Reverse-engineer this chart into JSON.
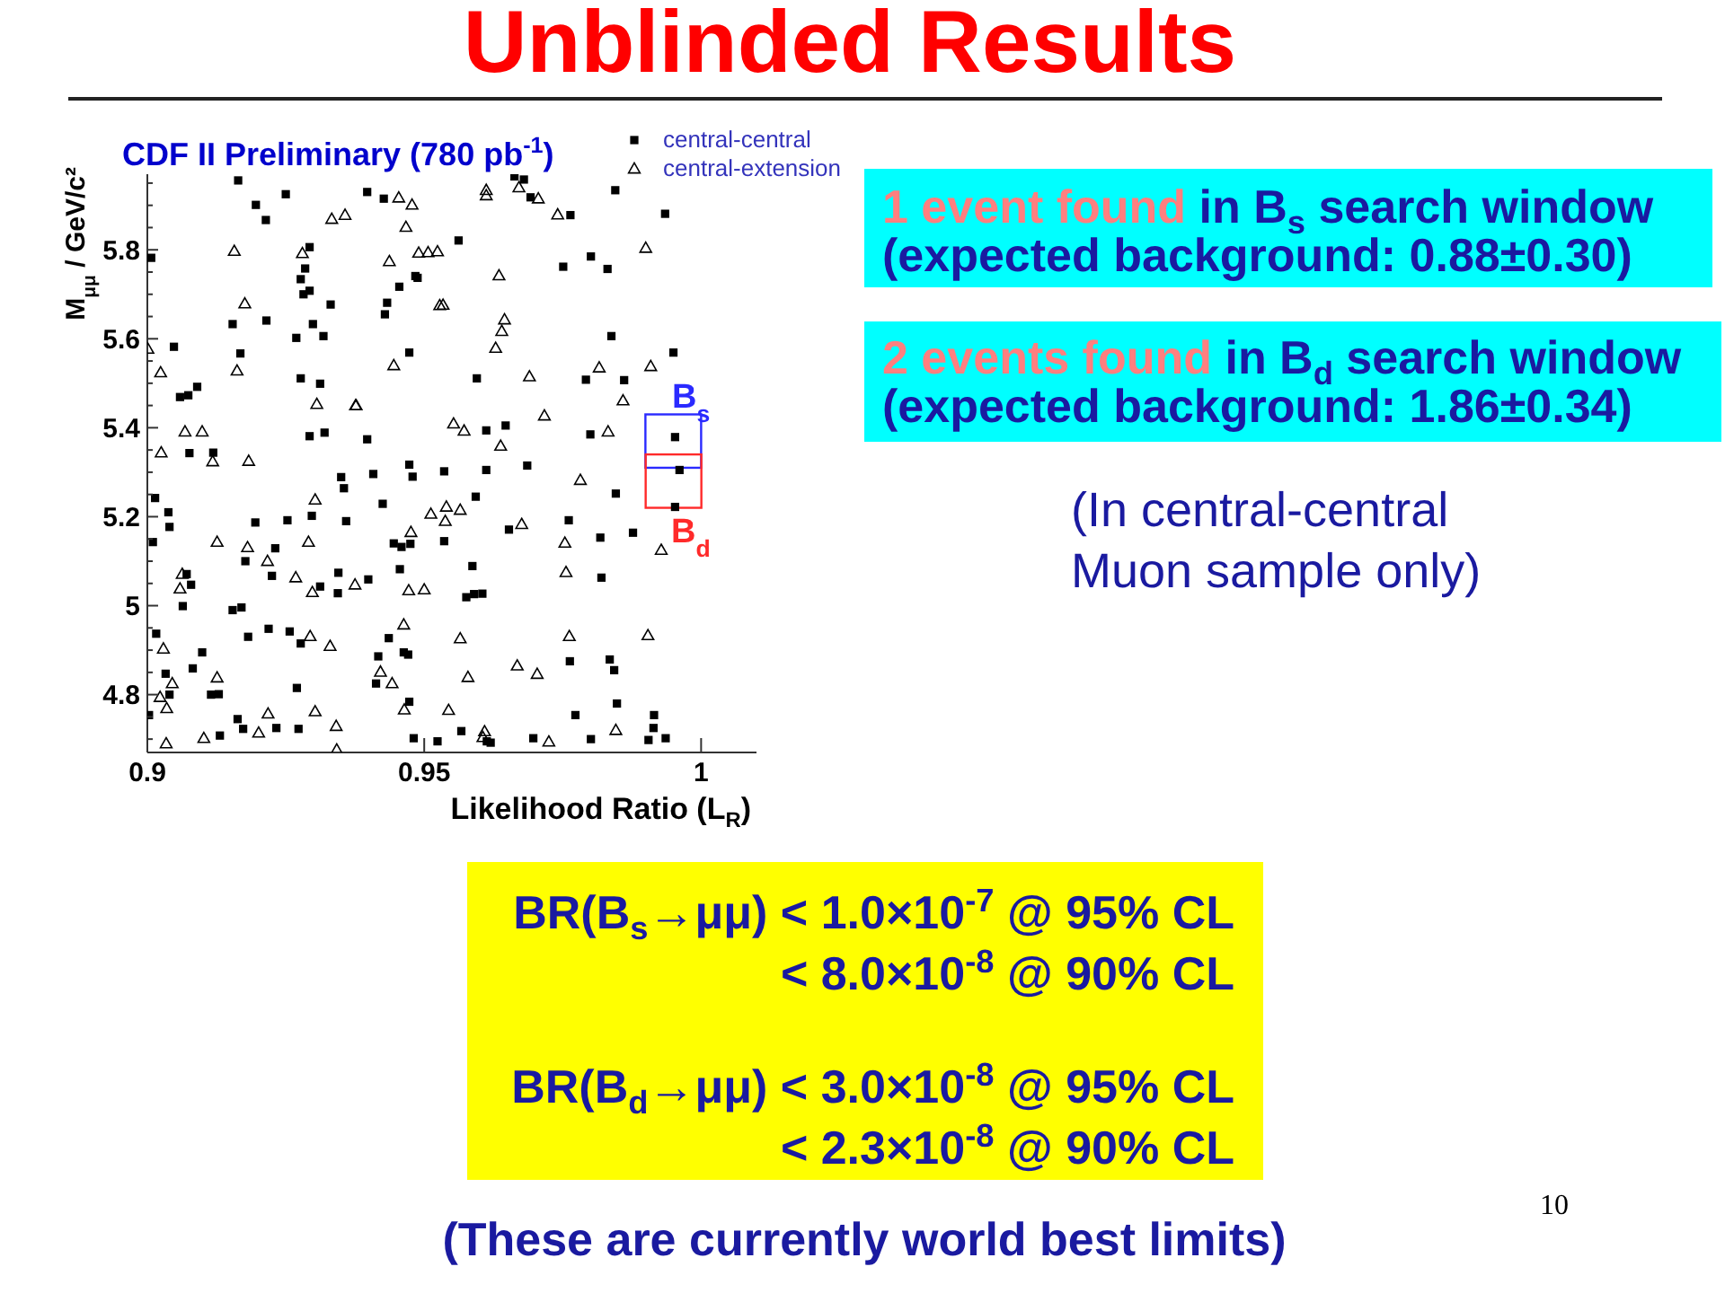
{
  "chart_data": {
    "type": "scatter",
    "title": "Unblinded Results",
    "subtitle": "CDF II Preliminary (780 pb$^{-1}$)",
    "xlabel": "Likelihood Ratio (L$_{R}$)",
    "ylabel": "M$_{μμ}$ / GeV/c²",
    "xlim": [
      0.9,
      1.01
    ],
    "xticks": [
      0.9,
      0.95,
      1
    ],
    "ylim": [
      4.67,
      5.97
    ],
    "yticks": [
      {
        "value": 4.7,
        "label": null
      },
      {
        "value": 4.75,
        "label": null
      },
      4.8,
      {
        "value": 4.85,
        "label": null
      },
      {
        "value": 4.9,
        "label": null
      },
      {
        "value": 4.95,
        "label": null
      },
      5,
      {
        "value": 5.05,
        "label": null
      },
      {
        "value": 5.1,
        "label": null
      },
      {
        "value": 5.15,
        "label": null
      },
      5.2,
      {
        "value": 5.25,
        "label": null
      },
      {
        "value": 5.3,
        "label": null
      },
      {
        "value": 5.35,
        "label": null
      },
      5.4,
      {
        "value": 5.45,
        "label": null
      },
      {
        "value": 5.5,
        "label": null
      },
      {
        "value": 5.55,
        "label": null
      },
      5.6,
      {
        "value": 5.65,
        "label": null
      },
      {
        "value": 5.7,
        "label": null
      },
      {
        "value": 5.75,
        "label": null
      },
      5.8,
      {
        "value": 5.85,
        "label": null
      },
      {
        "value": 5.9,
        "label": null
      },
      {
        "value": 5.95,
        "label": null
      }
    ],
    "legend": "top right",
    "series": [
      {
        "name": "central-central",
        "color": "#000000",
        "marker": "square",
        "x": [
          0.9164,
          0.9196,
          0.9214,
          0.925,
          0.9007,
          0.9293,
          0.9285,
          0.9277,
          0.9293,
          0.9282,
          0.9331,
          0.9215,
          0.9154,
          0.9299,
          0.9269,
          0.9318,
          0.9048,
          0.9168,
          0.9277,
          0.9312,
          0.909,
          0.9074,
          0.9059,
          0.9293,
          0.932,
          0.9076,
          0.9119,
          0.9397,
          0.9427,
          0.9663,
          0.968,
          0.9692,
          0.9764,
          0.9562,
          0.9751,
          0.9801,
          0.9484,
          0.9488,
          0.9455,
          0.9433,
          0.9429,
          0.9473,
          0.9595,
          0.9792,
          0.9397,
          0.9612,
          0.9647,
          0.98,
          0.9845,
          0.9935,
          0.9831,
          0.9838,
          0.995,
          0.9861,
          0.9953,
          0.9961,
          0.9846,
          0.9953,
          0.935,
          0.9355,
          0.9014,
          0.9038,
          0.904,
          0.901,
          0.9195,
          0.9253,
          0.9297,
          0.9359,
          0.9231,
          0.9177,
          0.9225,
          0.9071,
          0.9079,
          0.9064,
          0.9154,
          0.917,
          0.9312,
          0.9345,
          0.9344,
          0.9016,
          0.9182,
          0.9219,
          0.9257,
          0.9277,
          0.9099,
          0.9082,
          0.9033,
          0.904,
          0.9115,
          0.9129,
          0.9003,
          0.927,
          0.9163,
          0.9173,
          0.9131,
          0.9233,
          0.9273,
          0.9473,
          0.9408,
          0.9479,
          0.9536,
          0.9612,
          0.9686,
          0.9425,
          0.9593,
          0.9653,
          0.9761,
          0.9445,
          0.9459,
          0.9475,
          0.9536,
          0.9456,
          0.9587,
          0.9399,
          0.9576,
          0.959,
          0.9605,
          0.9436,
          0.9417,
          0.9463,
          0.9471,
          0.9763,
          0.9413,
          0.9473,
          0.9773,
          0.9481,
          0.9524,
          0.9567,
          0.9613,
          0.962,
          0.9697,
          0.9801,
          0.9818,
          0.9877,
          0.982,
          0.9835,
          0.9843,
          0.9848,
          0.9915,
          0.9914,
          0.9905,
          0.9936
        ],
        "values": [
          5.956,
          5.901,
          5.867,
          5.925,
          5.782,
          5.806,
          5.758,
          5.734,
          5.708,
          5.7,
          5.677,
          5.641,
          5.633,
          5.633,
          5.602,
          5.606,
          5.582,
          5.567,
          5.511,
          5.499,
          5.492,
          5.473,
          5.469,
          5.381,
          5.389,
          5.343,
          5.344,
          5.93,
          5.915,
          5.965,
          5.958,
          5.918,
          5.878,
          5.821,
          5.762,
          5.785,
          5.741,
          5.737,
          5.717,
          5.681,
          5.655,
          5.569,
          5.511,
          5.508,
          5.374,
          5.394,
          5.405,
          5.385,
          5.934,
          5.881,
          5.757,
          5.606,
          5.569,
          5.507,
          5.379,
          5.305,
          5.252,
          5.222,
          5.289,
          5.264,
          5.242,
          5.21,
          5.177,
          5.143,
          5.187,
          5.192,
          5.202,
          5.19,
          5.129,
          5.1,
          5.067,
          5.071,
          5.047,
          4.999,
          4.99,
          4.996,
          5.043,
          5.074,
          5.028,
          4.937,
          4.93,
          4.948,
          4.942,
          4.915,
          4.895,
          4.859,
          4.847,
          4.8,
          4.8,
          4.801,
          4.754,
          4.815,
          4.745,
          4.723,
          4.708,
          4.725,
          4.723,
          5.317,
          5.296,
          5.29,
          5.302,
          5.305,
          5.315,
          5.229,
          5.245,
          5.171,
          5.192,
          5.14,
          5.132,
          5.139,
          5.145,
          5.082,
          5.089,
          5.059,
          5.019,
          5.026,
          5.027,
          4.927,
          4.886,
          4.895,
          4.89,
          4.875,
          4.825,
          4.784,
          4.754,
          4.702,
          4.695,
          4.718,
          4.695,
          4.692,
          4.702,
          4.7,
          5.153,
          5.164,
          5.063,
          4.879,
          4.855,
          4.78,
          4.754,
          4.725,
          4.698,
          4.702
        ]
      },
      {
        "name": "central-extension",
        "color": "#000000",
        "marker": "triangle",
        "x": [
          0.9157,
          0.9176,
          0.9162,
          0.928,
          0.9333,
          0.9357,
          0.9001,
          0.9024,
          0.9306,
          0.9376,
          0.9068,
          0.9099,
          0.9025,
          0.9118,
          0.9183,
          0.9454,
          0.9478,
          0.9467,
          0.9612,
          0.9612,
          0.9671,
          0.9706,
          0.9741,
          0.9437,
          0.949,
          0.9507,
          0.9524,
          0.9635,
          0.9528,
          0.9534,
          0.9645,
          0.964,
          0.9629,
          0.9445,
          0.969,
          0.9377,
          0.9717,
          0.9553,
          0.9572,
          0.9638,
          0.99,
          0.9816,
          0.9909,
          0.9859,
          0.9832,
          0.9782,
          0.9303,
          0.9126,
          0.9181,
          0.9217,
          0.9291,
          0.9063,
          0.9059,
          0.9268,
          0.9298,
          0.9375,
          0.9029,
          0.9294,
          0.933,
          0.9045,
          0.9126,
          0.9023,
          0.9035,
          0.9218,
          0.9303,
          0.9201,
          0.9341,
          0.9102,
          0.9034,
          0.9342,
          0.9512,
          0.954,
          0.9565,
          0.9538,
          0.9476,
          0.9676,
          0.9754,
          0.9756,
          0.9472,
          0.95,
          0.9463,
          0.9565,
          0.9762,
          0.9421,
          0.9442,
          0.9579,
          0.9668,
          0.9704,
          0.9464,
          0.9544,
          0.9609,
          0.9606,
          0.9725,
          0.9928,
          0.9904,
          0.9846
        ],
        "values": [
          5.797,
          5.679,
          5.528,
          5.792,
          5.869,
          5.878,
          5.577,
          5.524,
          5.453,
          5.45,
          5.391,
          5.391,
          5.344,
          5.324,
          5.325,
          5.917,
          5.901,
          5.851,
          5.934,
          5.922,
          5.94,
          5.915,
          5.879,
          5.774,
          5.793,
          5.794,
          5.796,
          5.742,
          5.675,
          5.676,
          5.643,
          5.617,
          5.579,
          5.54,
          5.515,
          5.45,
          5.427,
          5.409,
          5.393,
          5.359,
          5.804,
          5.535,
          5.538,
          5.461,
          5.391,
          5.282,
          5.238,
          5.143,
          5.131,
          5.1,
          5.143,
          5.071,
          5.038,
          5.063,
          5.03,
          5.047,
          4.903,
          4.931,
          4.909,
          4.825,
          4.838,
          4.794,
          4.769,
          4.757,
          4.762,
          4.714,
          4.729,
          4.702,
          4.69,
          4.676,
          5.206,
          5.222,
          5.215,
          5.19,
          5.165,
          5.183,
          5.141,
          5.075,
          5.034,
          5.036,
          4.957,
          4.926,
          4.931,
          4.851,
          4.825,
          4.839,
          4.865,
          4.846,
          4.766,
          4.765,
          4.717,
          4.704,
          4.694,
          5.125,
          4.933,
          4.72
        ]
      },
      {
        "name": "B$_{s}$",
        "type": "bar",
        "color": "#2a2aff",
        "x": [
          0.995
        ],
        "base": [
          5.31
        ],
        "values": [
          0.12
        ]
      },
      {
        "name": "B$_{d}$",
        "type": "bar",
        "color": "#ff2a2a",
        "x": [
          0.995
        ],
        "base": [
          5.22
        ],
        "values": [
          0.12
        ]
      }
    ],
    "annotations": [
      "1 event found",
      "in B$_{s}$ search window",
      "(expected background: 0.88±0.30)",
      "2 events found",
      "in B$_{d}$ search window",
      "(expected background: 1.86±0.34)",
      "(In central-central Muon sample only)",
      "BR(B$_{s}$→μμ) < 1.0×10$^{-7}$ @ 95% CL",
      "< 8.0×10$^{-8}$ @ 90% CL",
      "BR(B$_{d}$→μμ) < 3.0×10$^{-8}$ @ 95% CL",
      "< 2.3×10$^{-8}$ @ 90% CL",
      "(These are currently world best limits)",
      "10"
    ]
  }
}
